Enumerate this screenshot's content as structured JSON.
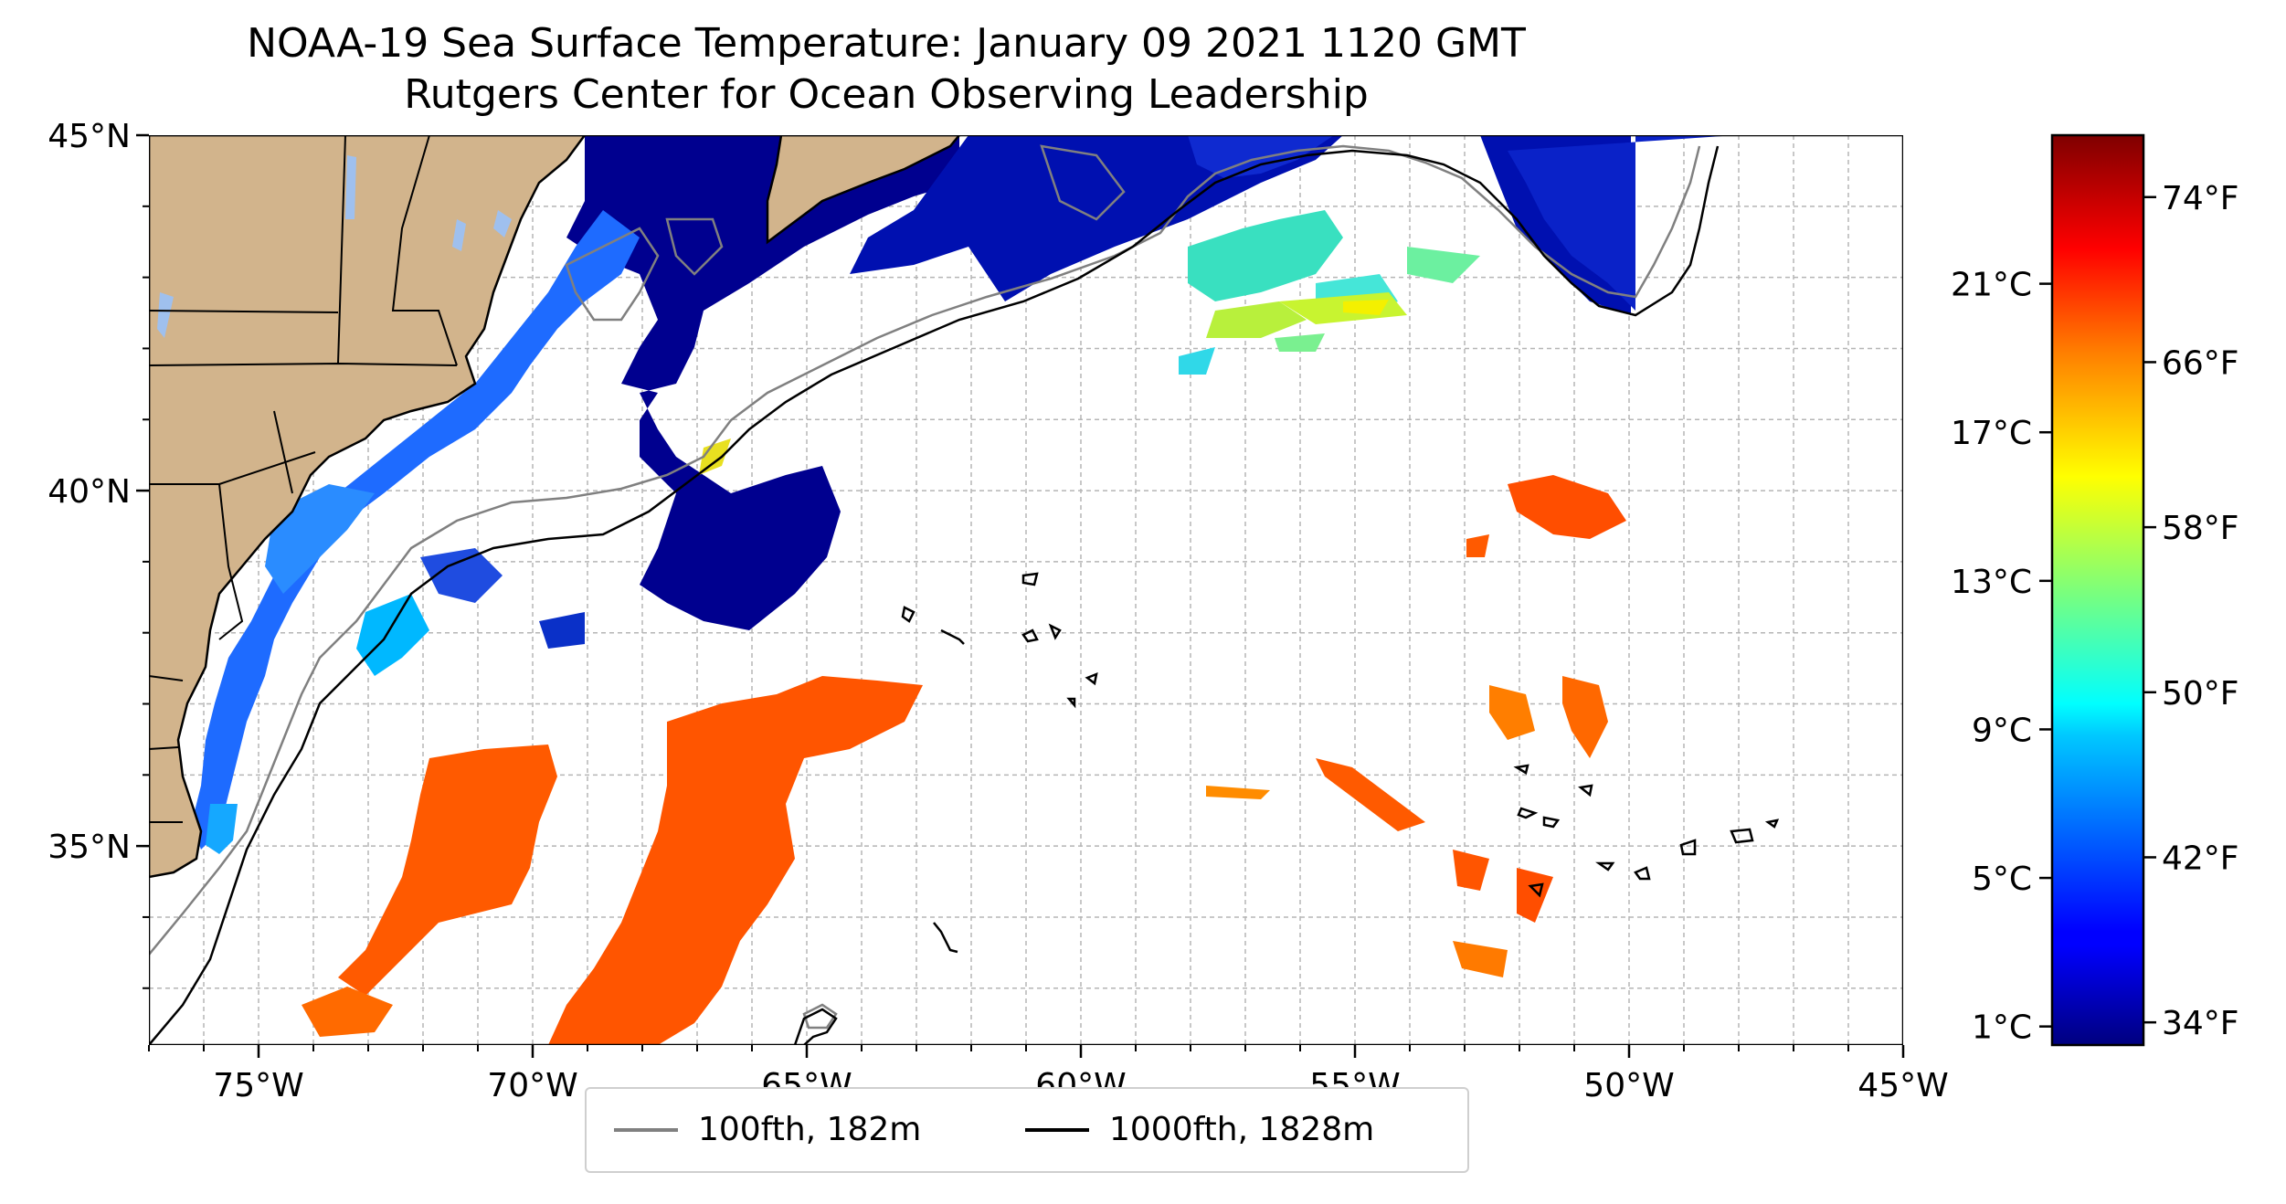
{
  "title": {
    "line1": "NOAA-19 Sea Surface Temperature: January 09 2021 1120 GMT",
    "line2": "Rutgers Center for Ocean Observing Leadership"
  },
  "map": {
    "extent": {
      "lon_min": -77,
      "lon_max": -45,
      "lat_min": 32.2,
      "lat_max": 45
    },
    "lat_ticks": [
      {
        "value": 45,
        "label": "45°N"
      },
      {
        "value": 40,
        "label": "40°N"
      },
      {
        "value": 35,
        "label": "35°N"
      }
    ],
    "lon_ticks": [
      {
        "value": -75,
        "label": "75°W"
      },
      {
        "value": -70,
        "label": "70°W"
      },
      {
        "value": -65,
        "label": "65°W"
      },
      {
        "value": -60,
        "label": "60°W"
      },
      {
        "value": -55,
        "label": "55°W"
      },
      {
        "value": -50,
        "label": "50°W"
      },
      {
        "value": -45,
        "label": "45°W"
      }
    ],
    "grid": "dashed, 1 degree",
    "land_color": "#d2b48c",
    "lake_color": "#9fc0ee"
  },
  "colorbar": {
    "colormap": "jet",
    "range_c": [
      0.5,
      25
    ],
    "celsius_ticks": [
      {
        "value": 1,
        "label": "1°C"
      },
      {
        "value": 5,
        "label": "5°C"
      },
      {
        "value": 9,
        "label": "9°C"
      },
      {
        "value": 13,
        "label": "13°C"
      },
      {
        "value": 17,
        "label": "17°C"
      },
      {
        "value": 21,
        "label": "21°C"
      }
    ],
    "fahrenheit_ticks": [
      {
        "value": 34,
        "label": "34°F"
      },
      {
        "value": 42,
        "label": "42°F"
      },
      {
        "value": 50,
        "label": "50°F"
      },
      {
        "value": 58,
        "label": "58°F"
      },
      {
        "value": 66,
        "label": "66°F"
      },
      {
        "value": 74,
        "label": "74°F"
      }
    ]
  },
  "legend": {
    "items": [
      {
        "label": "100fth, 182m",
        "color": "#808080"
      },
      {
        "label": "1000fth, 1828m",
        "color": "#000000"
      }
    ]
  }
}
